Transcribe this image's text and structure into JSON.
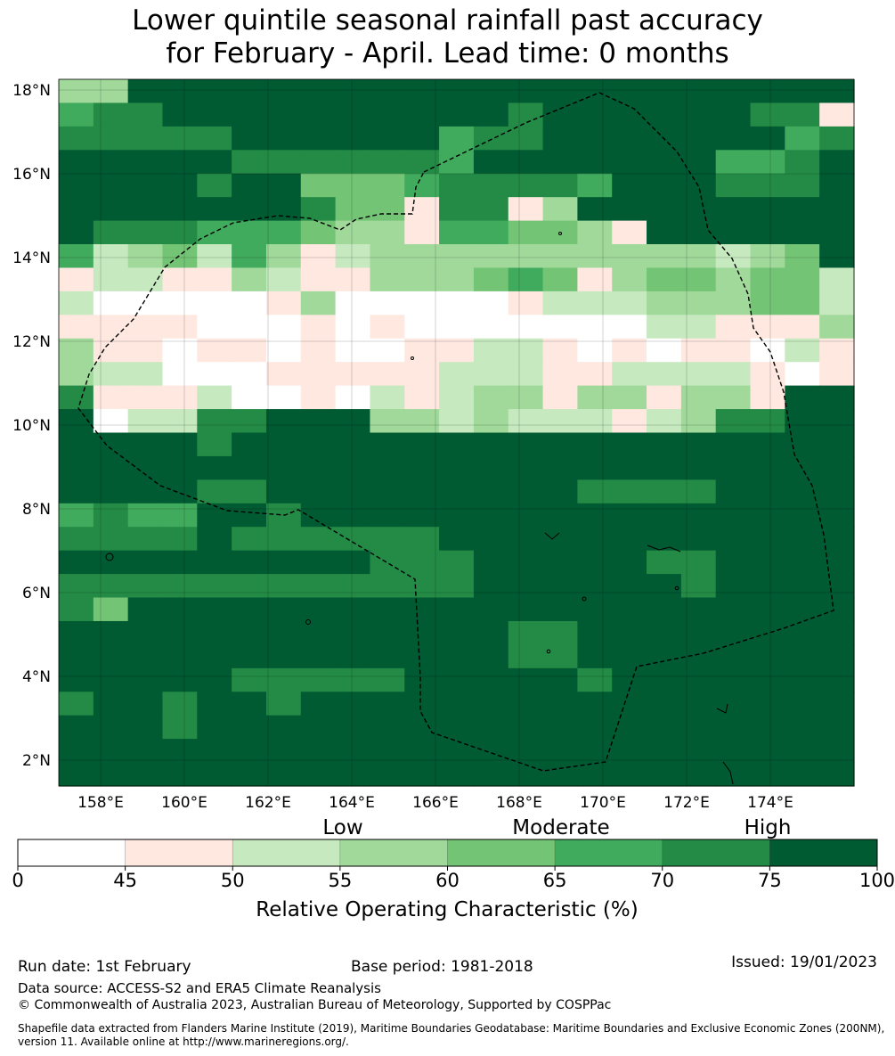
{
  "title": {
    "line1": "Lower quintile seasonal rainfall past accuracy",
    "line2": "for February - April. Lead time: 0 months"
  },
  "map": {
    "lon_ticks": [
      "158°E",
      "160°E",
      "162°E",
      "164°E",
      "166°E",
      "168°E",
      "170°E",
      "172°E",
      "174°E"
    ],
    "lat_ticks": [
      "18°N",
      "16°N",
      "14°N",
      "12°N",
      "10°N",
      "8°N",
      "6°N",
      "4°N",
      "2°N"
    ],
    "grid_columns": 23,
    "grid_rows": 30,
    "cell_classes": [
      "33777777777777777777777",
      "56677777777776777777661",
      "66666777777566777777756",
      "77777666666577777775567",
      "77776774445666657776667",
      "77777776441661377777777",
      "76665554331554431777777",
      "52342531233333333332347",
      "12211321133345413443442",
      "20000013000001222333442",
      "11110001010000000221113",
      "31101101001122101011021",
      "32200011111222112222101",
      "61112001021233133133177",
      "70226677733232221236677",
      "77776777777777777777777",
      "77777777777777777777777",
      "77776677777777766667777",
      "56557767777777777777777",
      "66667666666777777777777",
      "77777777766677777667777",
      "66666666666677777767777",
      "64777777777777777777777",
      "77777777777776677777777",
      "77777777777776677777777",
      "77777666667777767777777",
      "67767767777777777777777",
      "77767777777777777777777",
      "77777777777777777777777",
      "77777777777777777777777"
    ]
  },
  "colorbar": {
    "colors": [
      "#ffffff",
      "#fee8e0",
      "#c7e9c0",
      "#a1d99b",
      "#74c476",
      "#41ab5d",
      "#238b45",
      "#005a32"
    ],
    "ticks": [
      "0",
      "45",
      "50",
      "55",
      "60",
      "65",
      "70",
      "75",
      "100"
    ],
    "categories": [
      "Low",
      "Moderate",
      "High"
    ],
    "title": "Relative Operating Characteristic (%)"
  },
  "footer": {
    "run_date": "Run date: 1st February",
    "base_period": "Base period: 1981-2018",
    "issued": "Issued: 19/01/2023",
    "data_source": "Data source: ACCESS-S2 and ERA5 Climate Reanalysis",
    "copyright": "© Commonwealth of Australia 2023, Australian Bureau of Meteorology, Supported by COSPPac",
    "shapefile": "Shapefile data extracted from Flanders Marine Institute (2019), Maritime Boundaries Geodatabase: Maritime Boundaries and Exclusive Economic Zones (200NM), version 11. Available online at http://www.marineregions.org/."
  }
}
